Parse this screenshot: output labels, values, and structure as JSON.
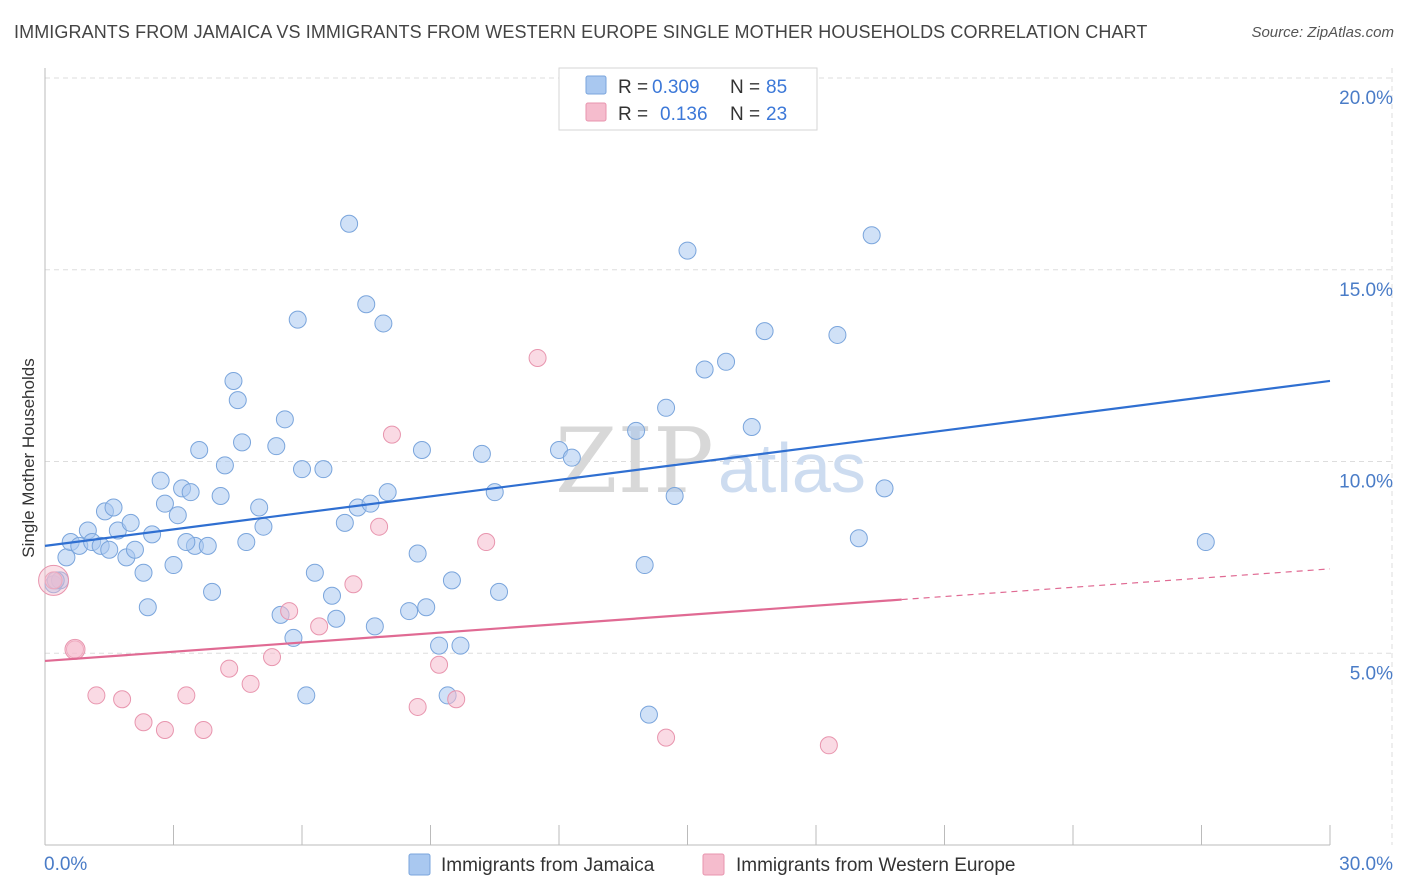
{
  "title": "IMMIGRANTS FROM JAMAICA VS IMMIGRANTS FROM WESTERN EUROPE SINGLE MOTHER HOUSEHOLDS CORRELATION CHART",
  "source": "Source: ZipAtlas.com",
  "watermark": {
    "zip": "ZIP",
    "atlas": "atlas"
  },
  "colors": {
    "blue_fill": "#a9c8f0",
    "blue_stroke": "#7aa5dc",
    "blue_line": "#2f6fd1",
    "pink_fill": "#f5bccd",
    "pink_stroke": "#e895ae",
    "pink_line": "#e06a93",
    "grid": "#dddddd",
    "tick_label": "#4a7cc7"
  },
  "legend": {
    "rows": [
      {
        "r_label": "R = ",
        "r_value": "0.309",
        "n_label": "N = ",
        "n_value": "85"
      },
      {
        "r_label": "R = ",
        "r_value": "0.136",
        "n_label": "N = ",
        "n_value": "23"
      }
    ]
  },
  "chart_data": {
    "type": "scatter",
    "title": "IMMIGRANTS FROM JAMAICA VS IMMIGRANTS FROM WESTERN EUROPE SINGLE MOTHER HOUSEHOLDS CORRELATION CHART",
    "xlabel": "",
    "ylabel": "Single Mother Households",
    "xlim": [
      0,
      30
    ],
    "ylim": [
      0,
      20
    ],
    "x_tick_labels": [
      "0.0%",
      "30.0%"
    ],
    "y_ticks": [
      5,
      10,
      15,
      20
    ],
    "y_tick_labels": [
      "5.0%",
      "10.0%",
      "15.0%",
      "20.0%"
    ],
    "grid": true,
    "legend_position": "top-center",
    "series": [
      {
        "name": "Immigrants from Jamaica",
        "color": "#a9c8f0",
        "trend": {
          "x0": 0,
          "y0": 7.8,
          "x1": 30,
          "y1": 12.1
        },
        "points": [
          [
            0.2,
            6.8
          ],
          [
            0.35,
            6.9
          ],
          [
            0.5,
            7.5
          ],
          [
            0.6,
            7.9
          ],
          [
            0.8,
            7.8
          ],
          [
            1.0,
            8.2
          ],
          [
            1.1,
            7.9
          ],
          [
            1.3,
            7.8
          ],
          [
            1.4,
            8.7
          ],
          [
            1.6,
            8.8
          ],
          [
            1.7,
            8.2
          ],
          [
            1.9,
            7.5
          ],
          [
            2.0,
            8.4
          ],
          [
            2.1,
            7.7
          ],
          [
            2.3,
            7.1
          ],
          [
            2.4,
            6.2
          ],
          [
            2.5,
            8.1
          ],
          [
            2.7,
            9.5
          ],
          [
            2.8,
            8.9
          ],
          [
            3.0,
            7.3
          ],
          [
            3.1,
            8.6
          ],
          [
            3.2,
            9.3
          ],
          [
            3.4,
            9.2
          ],
          [
            3.5,
            7.8
          ],
          [
            3.6,
            10.3
          ],
          [
            3.8,
            7.8
          ],
          [
            3.9,
            6.6
          ],
          [
            4.1,
            9.1
          ],
          [
            4.2,
            9.9
          ],
          [
            4.4,
            12.1
          ],
          [
            4.5,
            11.6
          ],
          [
            4.6,
            10.5
          ],
          [
            4.7,
            7.9
          ],
          [
            5.0,
            8.8
          ],
          [
            5.1,
            8.3
          ],
          [
            5.4,
            10.4
          ],
          [
            5.5,
            6.0
          ],
          [
            5.6,
            11.1
          ],
          [
            5.8,
            5.4
          ],
          [
            5.9,
            13.7
          ],
          [
            6.0,
            9.8
          ],
          [
            6.1,
            3.9
          ],
          [
            6.3,
            7.1
          ],
          [
            6.5,
            9.8
          ],
          [
            6.7,
            6.5
          ],
          [
            6.8,
            5.9
          ],
          [
            7.0,
            8.4
          ],
          [
            7.1,
            16.2
          ],
          [
            7.3,
            8.8
          ],
          [
            7.5,
            14.1
          ],
          [
            7.6,
            8.9
          ],
          [
            7.7,
            5.7
          ],
          [
            7.9,
            13.6
          ],
          [
            8.0,
            9.2
          ],
          [
            8.5,
            6.1
          ],
          [
            8.7,
            7.6
          ],
          [
            8.8,
            10.3
          ],
          [
            8.9,
            6.2
          ],
          [
            9.2,
            5.2
          ],
          [
            9.4,
            3.9
          ],
          [
            9.5,
            6.9
          ],
          [
            9.7,
            5.2
          ],
          [
            10.2,
            10.2
          ],
          [
            10.5,
            9.2
          ],
          [
            10.6,
            6.6
          ],
          [
            12.0,
            10.3
          ],
          [
            12.3,
            10.1
          ],
          [
            13.8,
            10.8
          ],
          [
            14.0,
            7.3
          ],
          [
            14.1,
            3.4
          ],
          [
            14.5,
            11.4
          ],
          [
            14.7,
            9.1
          ],
          [
            15.0,
            15.5
          ],
          [
            15.4,
            12.4
          ],
          [
            15.9,
            12.6
          ],
          [
            16.5,
            10.9
          ],
          [
            16.8,
            13.4
          ],
          [
            18.5,
            13.3
          ],
          [
            19.0,
            8.0
          ],
          [
            19.3,
            15.9
          ],
          [
            19.6,
            9.3
          ],
          [
            27.1,
            7.9
          ],
          [
            0.25,
            6.9
          ],
          [
            1.5,
            7.7
          ],
          [
            3.3,
            7.9
          ]
        ]
      },
      {
        "name": "Immigrants from Western Europe",
        "color": "#f5bccd",
        "trend": {
          "x0": 0,
          "y0": 4.8,
          "x1": 20,
          "y1": 6.4,
          "dash_x1": 30,
          "dash_y1": 7.2
        },
        "points": [
          [
            0.2,
            6.9
          ],
          [
            0.7,
            5.1
          ],
          [
            1.2,
            3.9
          ],
          [
            1.8,
            3.8
          ],
          [
            2.3,
            3.2
          ],
          [
            2.8,
            3.0
          ],
          [
            3.3,
            3.9
          ],
          [
            3.7,
            3.0
          ],
          [
            4.3,
            4.6
          ],
          [
            4.8,
            4.2
          ],
          [
            5.3,
            4.9
          ],
          [
            5.7,
            6.1
          ],
          [
            6.4,
            5.7
          ],
          [
            7.2,
            6.8
          ],
          [
            7.8,
            8.3
          ],
          [
            8.1,
            10.7
          ],
          [
            8.7,
            3.6
          ],
          [
            9.2,
            4.7
          ],
          [
            9.6,
            3.8
          ],
          [
            10.3,
            7.9
          ],
          [
            11.5,
            12.7
          ],
          [
            14.5,
            2.8
          ],
          [
            18.3,
            2.6
          ]
        ]
      }
    ]
  },
  "bottom_legend": {
    "series1": "Immigrants from Jamaica",
    "series2": "Immigrants from Western Europe"
  }
}
